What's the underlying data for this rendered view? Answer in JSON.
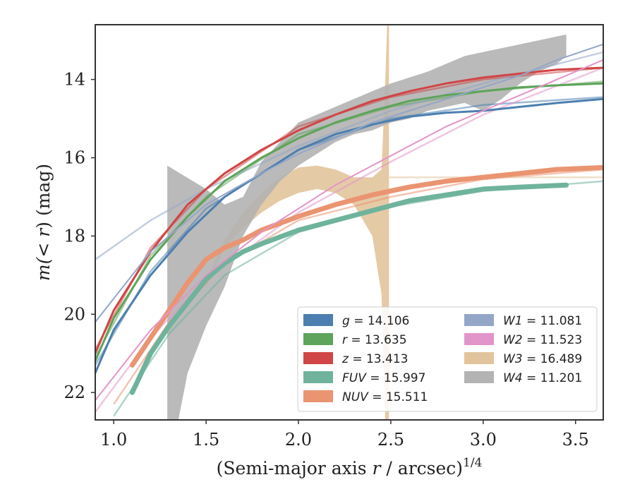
{
  "chart_data": {
    "type": "line",
    "title": "",
    "xlabel_main": "(Semi-major axis ",
    "xlabel_var": "r",
    "xlabel_rest": " / arcsec)",
    "xlabel_exp": "1/4",
    "ylabel_main_pre": "m(< ",
    "ylabel_var": "r",
    "ylabel_main_post": ") (mag)",
    "xlim": [
      0.9,
      3.65
    ],
    "ylim": [
      22.7,
      12.6
    ],
    "y_inverted": true,
    "xticks": [
      1.0,
      1.5,
      2.0,
      2.5,
      3.0,
      3.5
    ],
    "xtick_labels": [
      "1.0",
      "1.5",
      "2.0",
      "2.5",
      "3.0",
      "3.5"
    ],
    "yticks": [
      14,
      16,
      18,
      20,
      22
    ],
    "ytick_labels": [
      "14",
      "16",
      "18",
      "20",
      "22"
    ],
    "legend_position": "lower-right",
    "legend_columns": 2,
    "series": [
      {
        "name": "g",
        "label_text": "g = 14.106",
        "color": "#4c7fb0",
        "width": 3,
        "x": [
          0.9,
          1.0,
          1.2,
          1.4,
          1.6,
          1.8,
          2.0,
          2.2,
          2.4,
          2.6,
          2.8,
          3.0,
          3.2,
          3.4,
          3.65
        ],
        "y": [
          21.5,
          20.4,
          19.0,
          17.9,
          17.0,
          16.4,
          15.8,
          15.4,
          15.15,
          14.95,
          14.85,
          14.8,
          14.7,
          14.6,
          14.5
        ],
        "fit_x": [
          0.9,
          1.2,
          1.5,
          2.0,
          2.5,
          3.0,
          3.65
        ],
        "fit_y": [
          21.3,
          18.9,
          17.3,
          15.8,
          15.0,
          14.65,
          14.45
        ]
      },
      {
        "name": "r",
        "label_text": "r = 13.635",
        "color": "#5ea45a",
        "width": 3,
        "x": [
          0.9,
          1.0,
          1.2,
          1.4,
          1.6,
          1.8,
          2.0,
          2.2,
          2.4,
          2.6,
          2.8,
          3.0,
          3.2,
          3.4,
          3.65
        ],
        "y": [
          21.2,
          20.1,
          18.6,
          17.5,
          16.6,
          16.0,
          15.5,
          15.1,
          14.8,
          14.55,
          14.4,
          14.3,
          14.2,
          14.15,
          14.1
        ],
        "fit_x": [
          0.9,
          1.2,
          1.5,
          2.0,
          2.5,
          3.0,
          3.65
        ],
        "fit_y": [
          21.1,
          18.5,
          17.0,
          15.4,
          14.7,
          14.3,
          14.05
        ]
      },
      {
        "name": "z",
        "label_text": "z = 13.413",
        "color": "#d04545",
        "width": 3,
        "x": [
          0.9,
          1.0,
          1.2,
          1.4,
          1.6,
          1.8,
          2.0,
          2.2,
          2.4,
          2.6,
          2.8,
          3.0,
          3.2,
          3.4,
          3.65
        ],
        "y": [
          21.0,
          19.9,
          18.4,
          17.2,
          16.4,
          15.8,
          15.3,
          14.9,
          14.55,
          14.3,
          14.1,
          13.95,
          13.85,
          13.75,
          13.7
        ],
        "fit_x": [
          0.9,
          1.2,
          1.5,
          2.0,
          2.5,
          3.0,
          3.65
        ],
        "fit_y": [
          20.9,
          18.3,
          16.8,
          15.2,
          14.45,
          14.0,
          13.7
        ]
      },
      {
        "name": "FUV",
        "label_text": "FUV = 15.997",
        "color": "#6fb39c",
        "width": 7,
        "x": [
          1.1,
          1.2,
          1.3,
          1.4,
          1.5,
          1.6,
          1.7,
          1.8,
          2.0,
          2.2,
          2.4,
          2.6,
          2.8,
          3.0,
          3.2,
          3.45
        ],
        "y": [
          22.0,
          21.0,
          20.3,
          19.7,
          19.1,
          18.7,
          18.4,
          18.2,
          17.85,
          17.6,
          17.35,
          17.1,
          16.95,
          16.8,
          16.75,
          16.7
        ],
        "fit_x": [
          1.0,
          1.3,
          1.6,
          2.0,
          2.5,
          3.0,
          3.65
        ],
        "fit_y": [
          22.6,
          20.5,
          19.0,
          17.9,
          17.25,
          16.85,
          16.6
        ]
      },
      {
        "name": "NUV",
        "label_text": "NUV = 15.511",
        "color": "#ea9471",
        "width": 7,
        "x": [
          1.1,
          1.2,
          1.3,
          1.4,
          1.5,
          1.6,
          1.7,
          1.8,
          2.0,
          2.2,
          2.4,
          2.6,
          2.8,
          3.0,
          3.2,
          3.4,
          3.65
        ],
        "y": [
          21.3,
          20.6,
          19.9,
          19.2,
          18.6,
          18.3,
          18.1,
          17.85,
          17.5,
          17.2,
          16.95,
          16.75,
          16.6,
          16.5,
          16.4,
          16.3,
          16.25
        ],
        "fit_x": [
          1.0,
          1.3,
          1.6,
          2.0,
          2.5,
          3.0,
          3.65
        ],
        "fit_y": [
          22.3,
          20.2,
          18.7,
          17.6,
          17.0,
          16.55,
          16.3
        ]
      },
      {
        "name": "W1",
        "label_text": "W1 = 11.081",
        "color": "#94a6c8",
        "width": 2,
        "x": [
          0.9,
          1.2,
          1.5,
          1.8,
          2.0,
          2.2,
          2.4,
          2.6,
          2.8,
          3.0,
          3.2,
          3.4,
          3.65
        ],
        "y": [
          20.2,
          18.4,
          17.2,
          16.4,
          15.9,
          15.5,
          15.1,
          14.8,
          14.5,
          14.2,
          13.9,
          13.5,
          13.1
        ],
        "fit_x": [
          0.9,
          1.2,
          1.5,
          2.0,
          2.5,
          3.0,
          3.65
        ],
        "fit_y": [
          18.6,
          17.6,
          16.8,
          15.7,
          14.8,
          14.1,
          13.3
        ]
      },
      {
        "name": "W2",
        "label_text": "W2 = 11.523",
        "color": "#e295c8",
        "width": 2,
        "x": [
          0.9,
          1.2,
          1.5,
          1.8,
          2.0,
          2.2,
          2.4,
          2.6,
          2.8,
          3.0,
          3.2,
          3.4,
          3.65
        ],
        "y": [
          22.2,
          20.4,
          19.0,
          17.9,
          17.3,
          16.7,
          16.2,
          15.7,
          15.2,
          14.8,
          14.4,
          14.0,
          13.5
        ],
        "fit_x": [
          0.9,
          1.2,
          1.5,
          2.0,
          2.5,
          3.0,
          3.65
        ],
        "fit_y": [
          22.5,
          20.6,
          19.1,
          17.4,
          16.1,
          14.9,
          13.7
        ]
      },
      {
        "name": "W3",
        "label_text": "W3 = 16.489",
        "color": "#e2c49c",
        "width": 2,
        "upper_x": [
          1.5,
          1.6,
          1.7,
          1.8,
          1.9,
          2.0,
          2.1,
          2.2,
          2.3,
          2.4,
          2.45,
          2.47,
          2.48,
          2.49,
          2.49
        ],
        "upper_y": [
          19.1,
          18.1,
          17.4,
          16.9,
          16.5,
          16.25,
          16.2,
          16.3,
          16.5,
          16.5,
          16.3,
          14.0,
          12.6,
          12.6,
          16.5
        ],
        "lower_x": [
          2.49,
          2.48,
          2.47,
          2.45,
          2.4,
          2.35,
          2.3,
          2.2,
          2.1,
          2.0,
          1.9,
          1.8,
          1.7,
          1.6,
          1.5
        ],
        "lower_y": [
          22.7,
          22.7,
          22.7,
          19.5,
          18.0,
          17.6,
          17.2,
          16.9,
          16.8,
          16.9,
          17.1,
          17.4,
          17.8,
          18.3,
          19.3
        ],
        "fit_x": [
          2.49,
          3.65
        ],
        "fit_y": [
          16.5,
          16.5
        ]
      },
      {
        "name": "W4",
        "label_text": "W4 = 11.201",
        "color": "#b3b3b3",
        "width": 2,
        "upper_x": [
          1.29,
          1.29,
          1.5,
          1.6,
          1.7,
          1.8,
          1.9,
          2.0,
          2.1,
          2.2,
          2.3,
          2.4,
          2.5,
          2.6,
          2.7,
          2.8,
          2.9,
          3.0,
          3.1,
          3.2,
          3.3,
          3.4,
          3.45
        ],
        "upper_y": [
          22.7,
          16.2,
          16.8,
          17.2,
          17.0,
          16.1,
          15.6,
          15.1,
          14.9,
          14.7,
          14.5,
          14.3,
          14.1,
          13.95,
          13.8,
          13.6,
          13.4,
          13.3,
          13.2,
          13.1,
          13.0,
          12.9,
          12.85
        ],
        "lower_x": [
          3.45,
          3.4,
          3.3,
          3.2,
          3.1,
          3.0,
          2.9,
          2.8,
          2.7,
          2.6,
          2.5,
          2.4,
          2.3,
          2.2,
          2.1,
          2.0,
          1.9,
          1.8,
          1.7,
          1.6,
          1.5,
          1.4,
          1.35
        ],
        "lower_y": [
          13.4,
          13.6,
          13.8,
          14.1,
          14.5,
          14.8,
          14.6,
          14.7,
          14.8,
          15.0,
          15.1,
          15.3,
          15.4,
          15.6,
          15.9,
          16.2,
          16.6,
          17.2,
          18.0,
          19.3,
          20.3,
          21.5,
          22.7
        ]
      }
    ]
  }
}
